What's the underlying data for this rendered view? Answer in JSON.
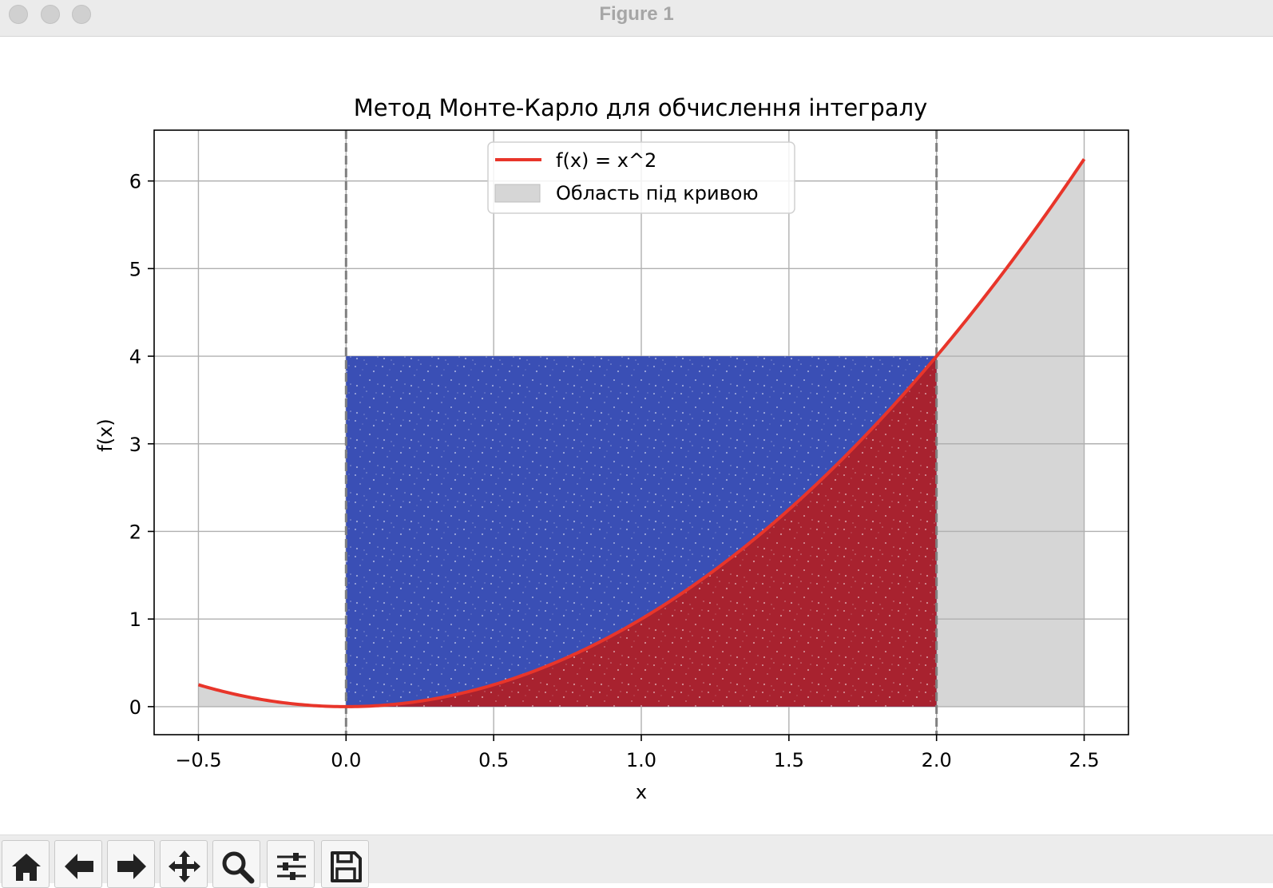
{
  "window": {
    "title": "Figure 1"
  },
  "toolbar": {
    "buttons": [
      {
        "icon": "home-icon",
        "label": "Home"
      },
      {
        "icon": "back-arrow-icon",
        "label": "Back"
      },
      {
        "icon": "forward-arrow-icon",
        "label": "Forward"
      },
      {
        "icon": "pan-icon",
        "label": "Pan"
      },
      {
        "icon": "zoom-icon",
        "label": "Zoom"
      },
      {
        "icon": "configure-subplots-icon",
        "label": "Subplots"
      },
      {
        "icon": "save-icon",
        "label": "Save"
      }
    ]
  },
  "colors": {
    "curve": "#e8352a",
    "fill": "#d6d6d6",
    "points_above": "#3a4fb5",
    "points_below": "#a8222f",
    "bounds": "#808080",
    "grid": "#b0b0b0"
  },
  "chart_data": {
    "type": "scatter",
    "title": "Метод Монте-Карло для обчислення інтегралу",
    "xlabel": "x",
    "ylabel": "f(x)",
    "xlim": [
      -0.65,
      2.65
    ],
    "ylim": [
      -0.32,
      6.58
    ],
    "xticks": [
      -0.5,
      0.0,
      0.5,
      1.0,
      1.5,
      2.0,
      2.5
    ],
    "xtick_labels": [
      "−0.5",
      "0.0",
      "0.5",
      "1.0",
      "1.5",
      "2.0",
      "2.5"
    ],
    "yticks": [
      0,
      1,
      2,
      3,
      4,
      5,
      6
    ],
    "ytick_labels": [
      "0",
      "1",
      "2",
      "3",
      "4",
      "5",
      "6"
    ],
    "grid": true,
    "legend_position": "upper center",
    "curve": {
      "name": "f(x) = x^2",
      "function": "x^2",
      "x_range": [
        -0.5,
        2.5
      ]
    },
    "fill_region": {
      "name": "Область під кривою",
      "x_range": [
        -0.5,
        2.5
      ],
      "y_base": 0
    },
    "bounds": {
      "x": [
        0,
        2
      ],
      "style": "dashed"
    },
    "sampling_box": {
      "x_range": [
        0,
        2
      ],
      "y_range": [
        0,
        4
      ]
    },
    "point_groups": [
      {
        "category": "above the curve",
        "condition": "y > x^2"
      },
      {
        "category": "below the curve",
        "condition": "y <= x^2"
      }
    ]
  }
}
